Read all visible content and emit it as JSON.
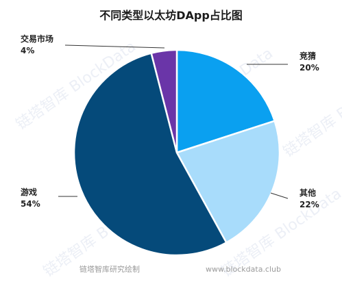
{
  "chart_data": {
    "type": "pie",
    "title": "不同类型以太坊DApp占比图",
    "start_angle_deg": 90,
    "direction": "clockwise",
    "slices": [
      {
        "label": "竞猜",
        "value": 20,
        "pct_text": "20%",
        "color": "#0aa0f0"
      },
      {
        "label": "其他",
        "value": 22,
        "pct_text": "22%",
        "color": "#a8dcfb"
      },
      {
        "label": "游戏",
        "value": 54,
        "pct_text": "54%",
        "color": "#054a7a"
      },
      {
        "label": "交易市场",
        "value": 4,
        "pct_text": "4%",
        "color": "#6a35a8"
      }
    ]
  },
  "footer": {
    "source": "链塔智库研究绘制",
    "url": "www.blockdata.club"
  },
  "watermark": {
    "text_cn": "链塔智库",
    "text_en": "BlockData"
  }
}
